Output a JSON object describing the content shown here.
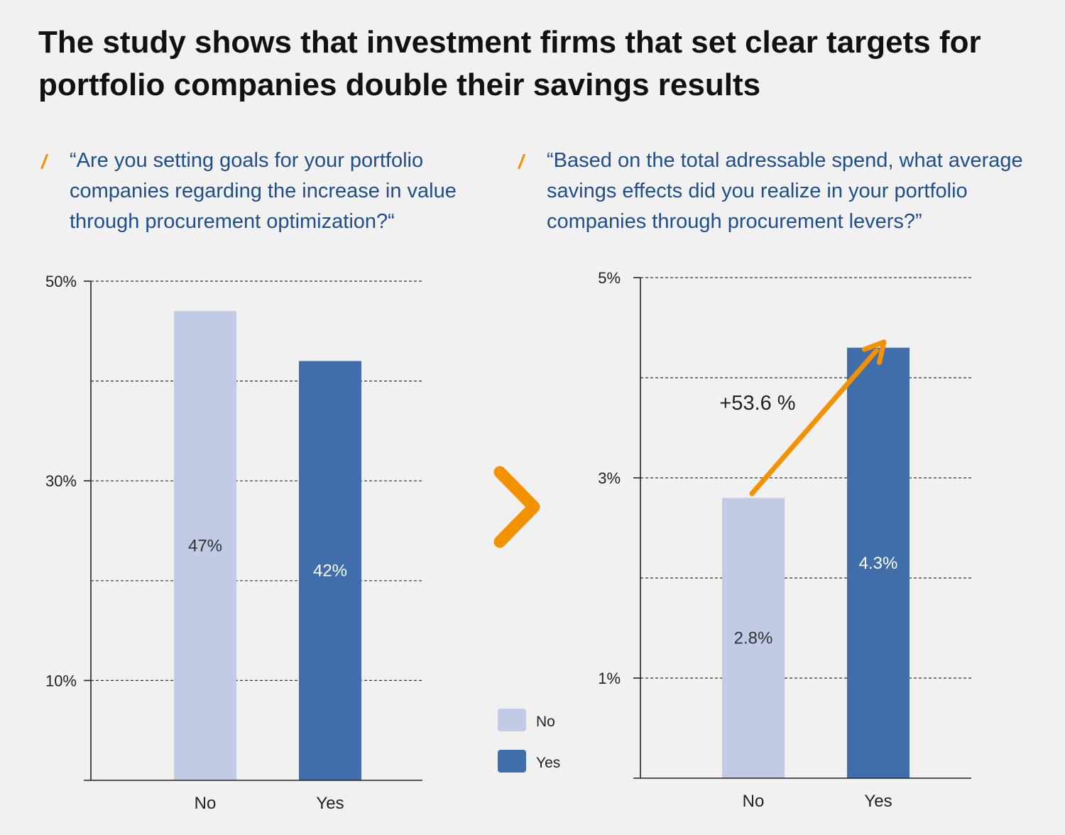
{
  "headline": "The study shows that investment firms that set clear targets for portfolio companies double their savings results",
  "slash_glyph": "/",
  "colors": {
    "background": "#f1f1f1",
    "no": "#c1cbe6",
    "yes": "#3f6eab",
    "accent": "#f39200",
    "question_text": "#1f4e8c"
  },
  "legend": [
    {
      "label": "No",
      "color": "#c1cbe6"
    },
    {
      "label": "Yes",
      "color": "#3f6eab"
    }
  ],
  "chart_data": [
    {
      "type": "bar",
      "title": "“Are you setting goals for your portfolio companies regarding the increase in value through procurement optimization?“",
      "categories": [
        "No",
        "Yes"
      ],
      "values": [
        47,
        42
      ],
      "value_labels": [
        "47%",
        "42%"
      ],
      "ylim": [
        0,
        50
      ],
      "yticks": [
        10,
        30,
        50
      ],
      "ytick_labels": [
        "10%",
        "30%",
        "50%"
      ],
      "gridlines": [
        10,
        20,
        30,
        40,
        50
      ],
      "grid": true
    },
    {
      "type": "bar",
      "title": "“Based on the total adressable spend, what average savings effects did you realize in your portfolio companies through procurement levers?”",
      "categories": [
        "No",
        "Yes"
      ],
      "values": [
        2.8,
        4.3
      ],
      "value_labels": [
        "2.8%",
        "4.3%"
      ],
      "ylim": [
        0,
        5
      ],
      "yticks": [
        1,
        3,
        5
      ],
      "ytick_labels": [
        "1%",
        "3%",
        "5%"
      ],
      "gridlines": [
        1,
        2,
        3,
        4,
        5
      ],
      "grid": true,
      "annotation": "+53.6 %"
    }
  ]
}
